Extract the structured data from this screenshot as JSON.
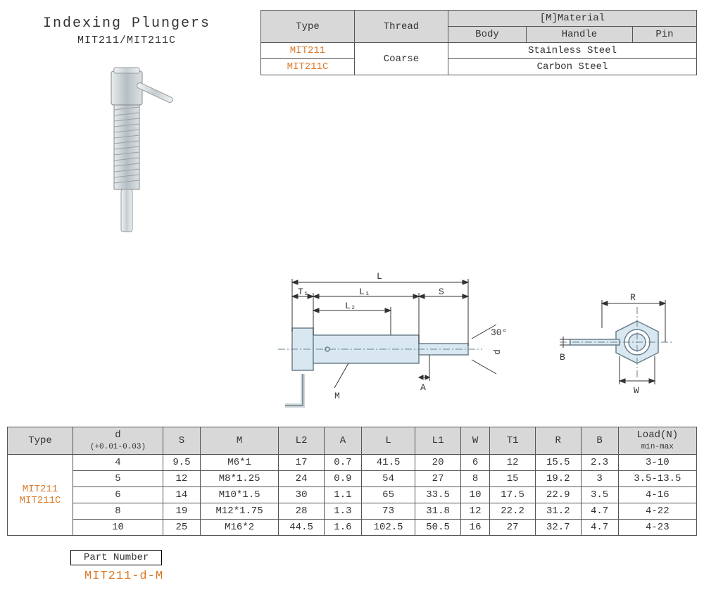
{
  "title": "Indexing Plungers",
  "subtitle": "MIT211/MIT211C",
  "matTable": {
    "headers": {
      "type": "Type",
      "thread": "Thread",
      "material": "[M]Material",
      "body": "Body",
      "handle": "Handle",
      "pin": "Pin"
    },
    "rows": [
      {
        "type": "MIT211",
        "thread": "Coarse",
        "mat": "Stainless Steel"
      },
      {
        "type": "MIT211C",
        "thread": "",
        "mat": "Carbon Steel"
      }
    ]
  },
  "diag": {
    "L": "L",
    "T1": "T₁",
    "L1": "L₁",
    "S": "S",
    "L2": "L₂",
    "M": "M",
    "A": "A",
    "d": "d",
    "ang": "30°",
    "R": "R",
    "B": "B",
    "W": "W"
  },
  "spec": {
    "cols": [
      "Type",
      "d\n(+0.01-0.03)",
      "S",
      "M",
      "L2",
      "A",
      "L",
      "L1",
      "W",
      "T1",
      "R",
      "B",
      "Load(N)\nmin-max"
    ],
    "typeLabel1": "MIT211",
    "typeLabel2": "MIT211C",
    "rows": [
      [
        "4",
        "9.5",
        "M6*1",
        "17",
        "0.7",
        "41.5",
        "20",
        "6",
        "12",
        "15.5",
        "2.3",
        "3-10"
      ],
      [
        "5",
        "12",
        "M8*1.25",
        "24",
        "0.9",
        "54",
        "27",
        "8",
        "15",
        "19.2",
        "3",
        "3.5-13.5"
      ],
      [
        "6",
        "14",
        "M10*1.5",
        "30",
        "1.1",
        "65",
        "33.5",
        "10",
        "17.5",
        "22.9",
        "3.5",
        "4-16"
      ],
      [
        "8",
        "19",
        "M12*1.75",
        "28",
        "1.3",
        "73",
        "31.8",
        "12",
        "22.2",
        "31.2",
        "4.7",
        "4-22"
      ],
      [
        "10",
        "25",
        "M16*2",
        "44.5",
        "1.6",
        "102.5",
        "50.5",
        "16",
        "27",
        "32.7",
        "4.7",
        "4-23"
      ]
    ]
  },
  "partNumber": {
    "label": "Part Number",
    "value": "MIT211-d-M"
  },
  "colors": {
    "hdr": "#d8d8d8",
    "orange": "#d97a2a",
    "steel": "#c9d4da",
    "outline": "#6a808e",
    "blue": "#aecfe0"
  }
}
